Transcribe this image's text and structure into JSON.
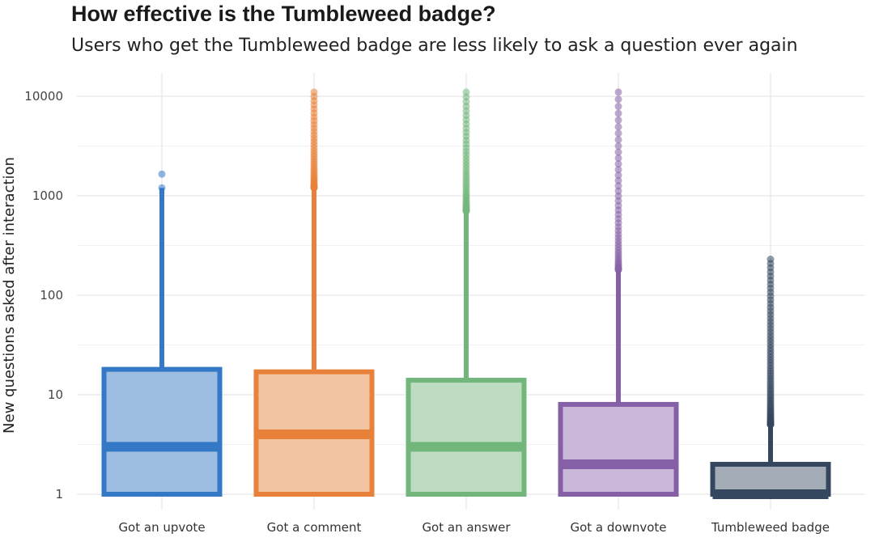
{
  "chart_data": {
    "type": "box",
    "title": "How effective is the Tumbleweed badge?",
    "subtitle": "Users who get the Tumbleweed badge are less likely to ask a question ever again",
    "xlabel": "",
    "ylabel": "New questions asked after interaction",
    "yscale": "log",
    "ylim": [
      0.8,
      15000
    ],
    "yticks": [
      1,
      10,
      100,
      1000,
      10000
    ],
    "ytick_labels": [
      "1",
      "10",
      "100",
      "1000",
      "10000"
    ],
    "grid": true,
    "categories": [
      "Got an upvote",
      "Got a comment",
      "Got an answer",
      "Got a downvote",
      "Tumbleweed badge"
    ],
    "boxes": [
      {
        "category": "Got an upvote",
        "color": "#3478c6",
        "fill": "#9dbde3",
        "min": 1,
        "q1": 1,
        "median": 3,
        "q3": 18,
        "whisker_high": 1200,
        "outliers_low": 1200,
        "outliers_high": 1650,
        "outlier_count": 2
      },
      {
        "category": "Got a comment",
        "color": "#e8823a",
        "fill": "#f4c5a3",
        "min": 1,
        "q1": 1,
        "median": 4,
        "q3": 17,
        "whisker_high": 1200,
        "outliers_low": 1200,
        "outliers_high": 11000,
        "outlier_count": 40
      },
      {
        "category": "Got an answer",
        "color": "#72b67c",
        "fill": "#bedcc2",
        "min": 1,
        "q1": 1,
        "median": 3,
        "q3": 14,
        "whisker_high": 700,
        "outliers_low": 700,
        "outliers_high": 11000,
        "outlier_count": 45
      },
      {
        "category": "Got a downvote",
        "color": "#8660a6",
        "fill": "#c9b6d9",
        "min": 1,
        "q1": 1,
        "median": 2,
        "q3": 8,
        "whisker_high": 180,
        "outliers_low": 180,
        "outliers_high": 11000,
        "outlier_count": 45
      },
      {
        "category": "Tumbleweed badge",
        "color": "#34475e",
        "fill": "#a3acb6",
        "min": 1,
        "q1": 1,
        "median": 1,
        "q3": 2,
        "whisker_high": 5,
        "outliers_low": 5,
        "outliers_high": 230,
        "outlier_count": 70
      }
    ]
  }
}
